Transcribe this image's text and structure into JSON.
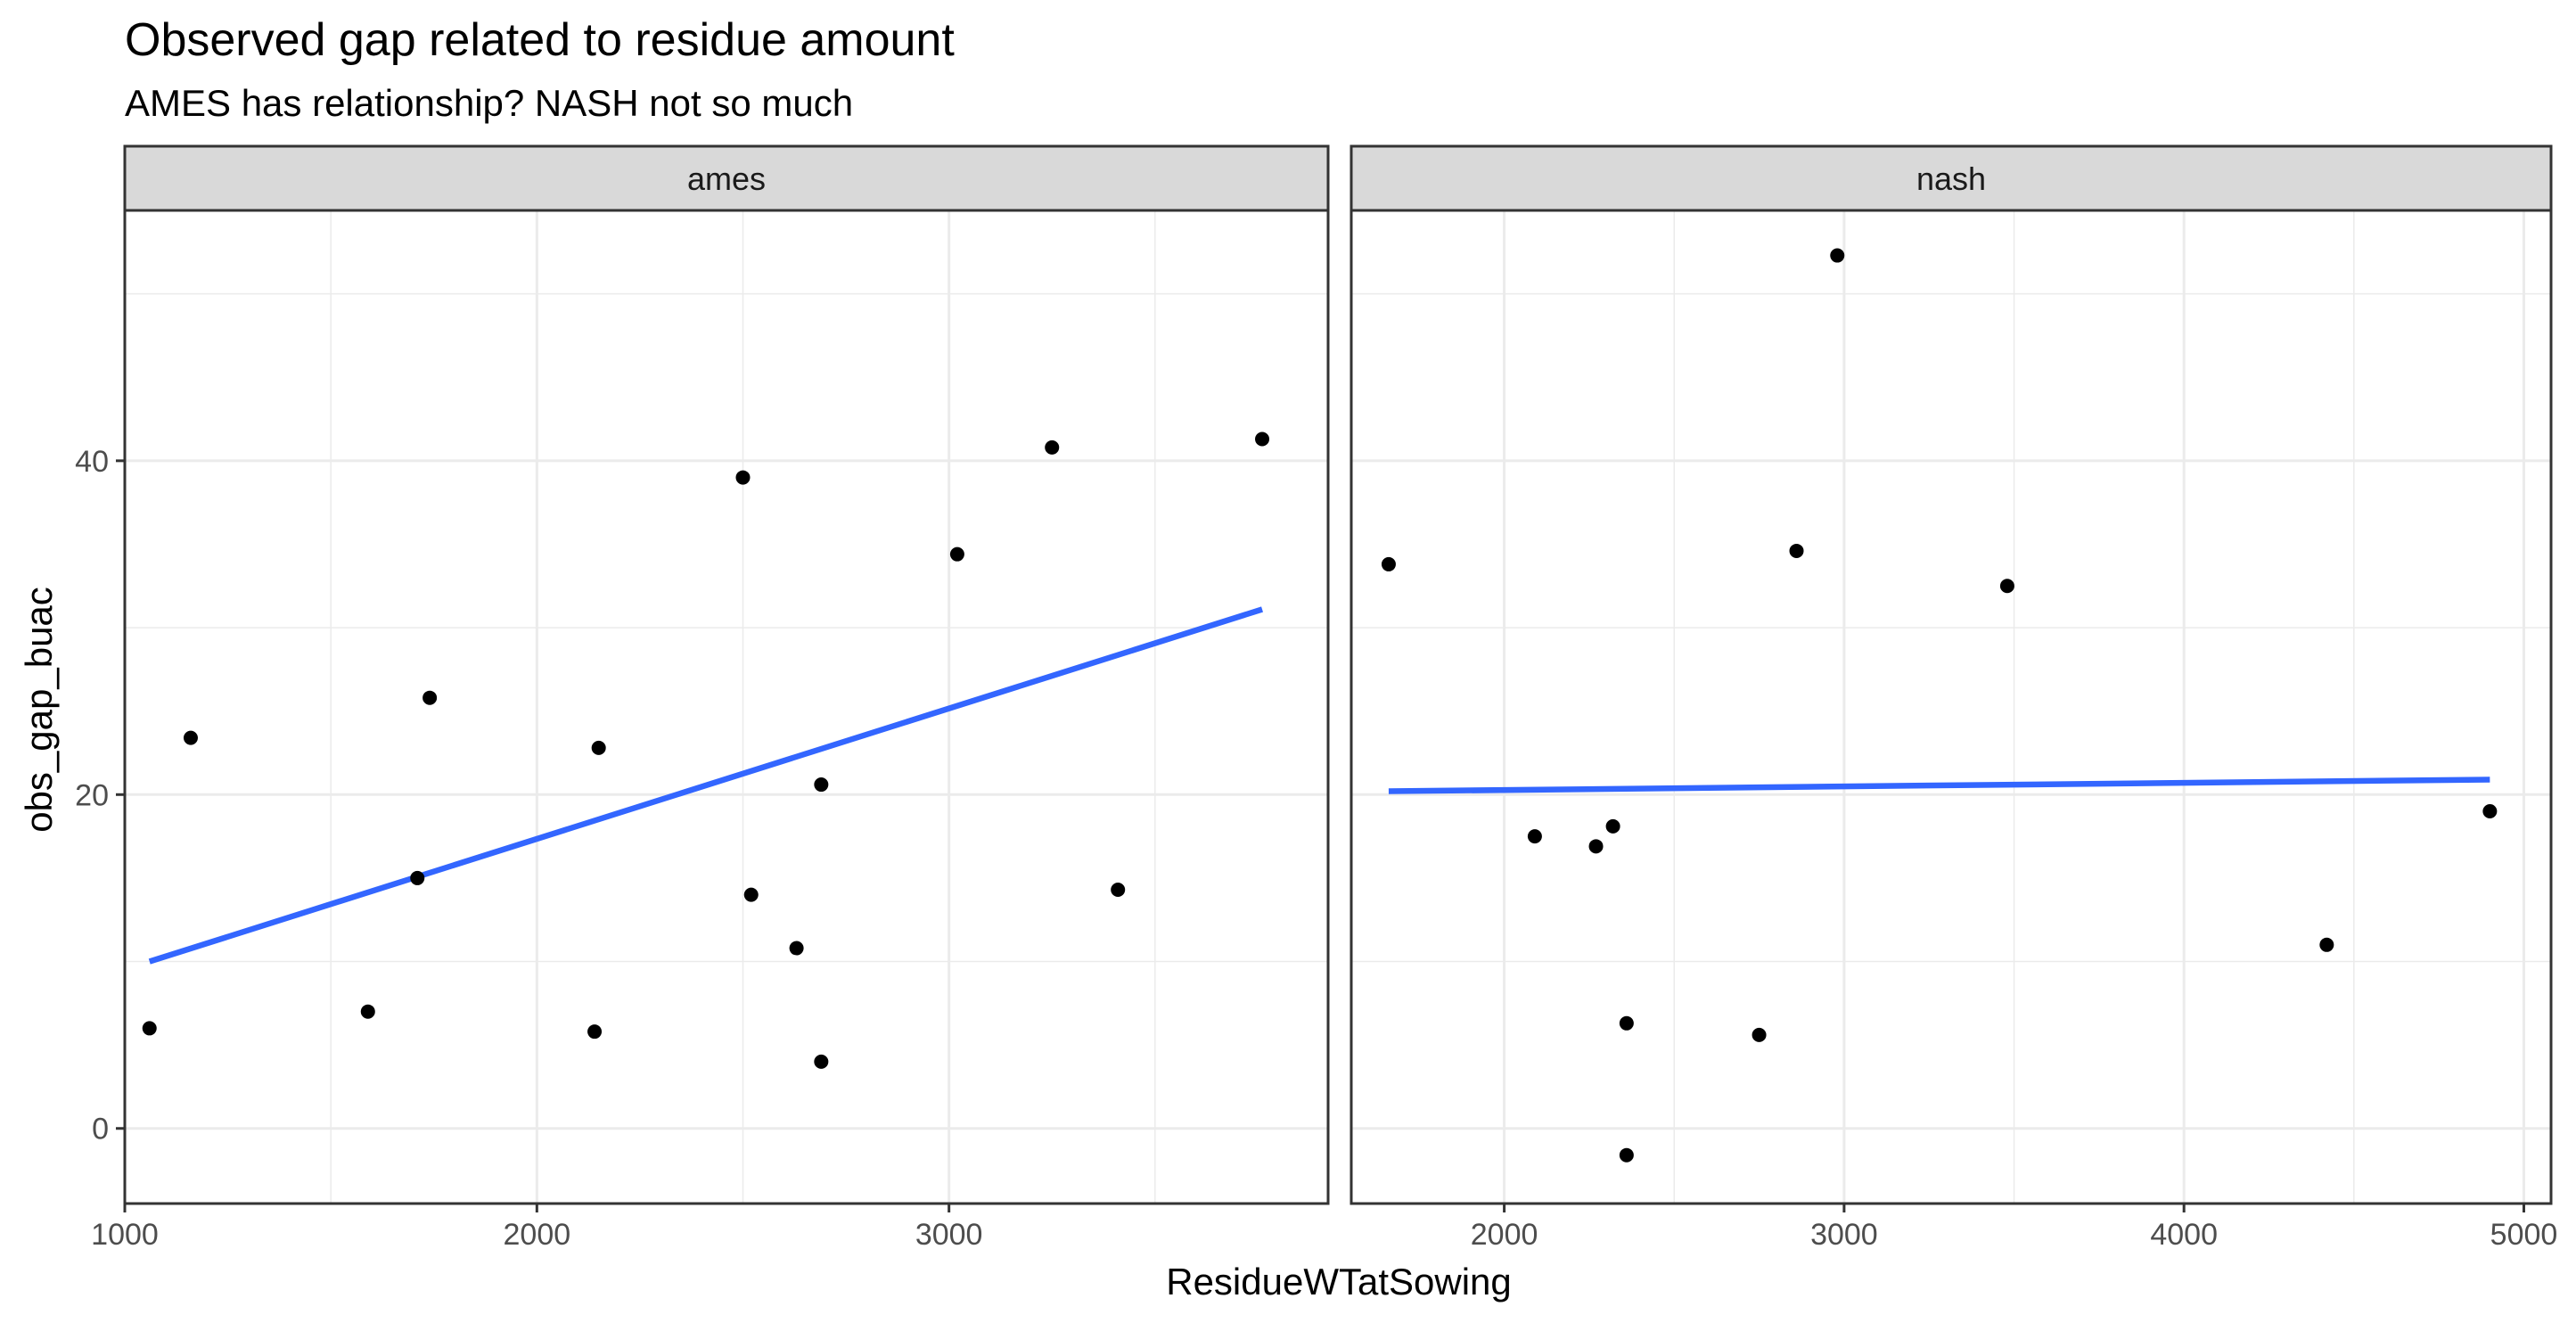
{
  "chart_data": {
    "type": "scatter",
    "title": "Observed gap related to residue amount",
    "subtitle": "AMES has relationship? NASH not so much",
    "xlabel": "ResidueWTatSowing",
    "ylabel": "obs_gap_buac",
    "ylim": [
      -4.5,
      55
    ],
    "y_ticks": [
      0,
      20,
      40
    ],
    "grid": true,
    "facets": [
      {
        "label": "ames",
        "xlim": [
          1000,
          3920
        ],
        "x_ticks": [
          1000,
          2000,
          3000
        ],
        "points": [
          {
            "x": 1060,
            "y": 6.0
          },
          {
            "x": 1160,
            "y": 23.4
          },
          {
            "x": 1590,
            "y": 7.0
          },
          {
            "x": 1710,
            "y": 15.0
          },
          {
            "x": 1740,
            "y": 25.8
          },
          {
            "x": 2140,
            "y": 5.8
          },
          {
            "x": 2150,
            "y": 22.8
          },
          {
            "x": 2500,
            "y": 39.0
          },
          {
            "x": 2520,
            "y": 14.0
          },
          {
            "x": 2630,
            "y": 10.8
          },
          {
            "x": 2690,
            "y": 20.6
          },
          {
            "x": 2690,
            "y": 4.0
          },
          {
            "x": 3020,
            "y": 34.4
          },
          {
            "x": 3250,
            "y": 40.8
          },
          {
            "x": 3410,
            "y": 14.3
          },
          {
            "x": 3760,
            "y": 41.3
          }
        ],
        "fit_line": {
          "x": [
            1060,
            3760
          ],
          "y": [
            10.0,
            31.1
          ]
        }
      },
      {
        "label": "nash",
        "xlim": [
          1550,
          5080
        ],
        "x_ticks": [
          2000,
          3000,
          4000,
          5000
        ],
        "points": [
          {
            "x": 1660,
            "y": 33.8
          },
          {
            "x": 2090,
            "y": 17.5
          },
          {
            "x": 2270,
            "y": 16.9
          },
          {
            "x": 2320,
            "y": 18.1
          },
          {
            "x": 2360,
            "y": 6.3
          },
          {
            "x": 2360,
            "y": -1.6
          },
          {
            "x": 2750,
            "y": 5.6
          },
          {
            "x": 2860,
            "y": 34.6
          },
          {
            "x": 2980,
            "y": 52.3
          },
          {
            "x": 3480,
            "y": 32.5
          },
          {
            "x": 4420,
            "y": 11.0
          },
          {
            "x": 4900,
            "y": 19.0
          }
        ],
        "fit_line": {
          "x": [
            1660,
            4900
          ],
          "y": [
            20.2,
            20.9
          ]
        }
      }
    ],
    "colors": {
      "points": "#000000",
      "fit_line": "#3366FF",
      "strip_background": "#D9D9D9",
      "grid": "#EBEBEB",
      "panel_border": "#333333"
    }
  }
}
